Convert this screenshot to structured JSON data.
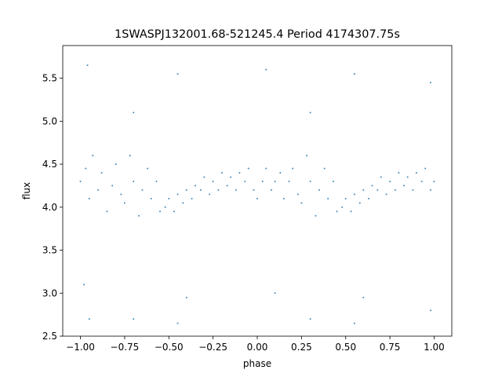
{
  "chart_data": {
    "type": "scatter",
    "title": "1SWASPJ132001.68-521245.4 Period 4174307.75s",
    "xlabel": "phase",
    "ylabel": "flux",
    "xlim": [
      -1.1,
      1.1
    ],
    "ylim": [
      2.5,
      5.88
    ],
    "xticks": [
      {
        "value": -1.0,
        "label": "−1.00"
      },
      {
        "value": -0.75,
        "label": "−0.75"
      },
      {
        "value": -0.5,
        "label": "−0.50"
      },
      {
        "value": -0.25,
        "label": "−0.25"
      },
      {
        "value": 0.0,
        "label": "0.00"
      },
      {
        "value": 0.25,
        "label": "0.25"
      },
      {
        "value": 0.5,
        "label": "0.50"
      },
      {
        "value": 0.75,
        "label": "0.75"
      },
      {
        "value": 1.0,
        "label": "1.00"
      }
    ],
    "yticks": [
      {
        "value": 2.5,
        "label": "2.5"
      },
      {
        "value": 3.0,
        "label": "3.0"
      },
      {
        "value": 3.5,
        "label": "3.5"
      },
      {
        "value": 4.0,
        "label": "4.0"
      },
      {
        "value": 4.5,
        "label": "4.5"
      },
      {
        "value": 5.0,
        "label": "5.0"
      },
      {
        "value": 5.5,
        "label": "5.5"
      }
    ],
    "grid": false,
    "marker_color": "#1f77b4",
    "series": [
      {
        "points": [
          [
            -1.0,
            4.3
          ],
          [
            -0.97,
            4.45
          ],
          [
            -0.95,
            4.1
          ],
          [
            -0.93,
            4.6
          ],
          [
            -0.9,
            4.2
          ],
          [
            -0.88,
            4.4
          ],
          [
            -0.85,
            3.95
          ],
          [
            -0.82,
            4.25
          ],
          [
            -0.8,
            4.5
          ],
          [
            -0.77,
            4.15
          ],
          [
            -0.75,
            4.05
          ],
          [
            -0.72,
            4.6
          ],
          [
            -0.7,
            4.3
          ],
          [
            -0.67,
            3.9
          ],
          [
            -0.65,
            4.2
          ],
          [
            -0.62,
            4.45
          ],
          [
            -0.6,
            4.1
          ],
          [
            -0.57,
            4.3
          ],
          [
            -0.55,
            3.95
          ],
          [
            -0.52,
            4.0
          ],
          [
            -0.5,
            4.1
          ],
          [
            -0.47,
            3.95
          ],
          [
            -0.45,
            4.15
          ],
          [
            -0.42,
            4.05
          ],
          [
            -0.4,
            4.2
          ],
          [
            -0.37,
            4.1
          ],
          [
            -0.35,
            4.25
          ],
          [
            -0.32,
            4.2
          ],
          [
            -0.3,
            4.35
          ],
          [
            -0.27,
            4.15
          ],
          [
            -0.25,
            4.3
          ],
          [
            -0.22,
            4.2
          ],
          [
            -0.2,
            4.4
          ],
          [
            -0.17,
            4.25
          ],
          [
            -0.15,
            4.35
          ],
          [
            -0.12,
            4.2
          ],
          [
            -0.1,
            4.4
          ],
          [
            -0.07,
            4.3
          ],
          [
            -0.05,
            4.45
          ],
          [
            -0.02,
            4.2
          ],
          [
            0.0,
            4.1
          ],
          [
            0.03,
            4.3
          ],
          [
            0.05,
            4.45
          ],
          [
            0.08,
            4.2
          ],
          [
            0.1,
            4.3
          ],
          [
            0.13,
            4.4
          ],
          [
            0.15,
            4.1
          ],
          [
            0.18,
            4.3
          ],
          [
            0.2,
            4.45
          ],
          [
            0.23,
            4.15
          ],
          [
            0.25,
            4.05
          ],
          [
            0.28,
            4.6
          ],
          [
            0.3,
            4.3
          ],
          [
            0.33,
            3.9
          ],
          [
            0.35,
            4.2
          ],
          [
            0.38,
            4.45
          ],
          [
            0.4,
            4.1
          ],
          [
            0.43,
            4.3
          ],
          [
            0.45,
            3.95
          ],
          [
            0.48,
            4.0
          ],
          [
            0.5,
            4.1
          ],
          [
            0.53,
            3.95
          ],
          [
            0.55,
            4.15
          ],
          [
            0.58,
            4.05
          ],
          [
            0.6,
            4.2
          ],
          [
            0.63,
            4.1
          ],
          [
            0.65,
            4.25
          ],
          [
            0.68,
            4.2
          ],
          [
            0.7,
            4.35
          ],
          [
            0.73,
            4.15
          ],
          [
            0.75,
            4.3
          ],
          [
            0.78,
            4.2
          ],
          [
            0.8,
            4.4
          ],
          [
            0.83,
            4.25
          ],
          [
            0.85,
            4.35
          ],
          [
            0.88,
            4.2
          ],
          [
            0.9,
            4.4
          ],
          [
            0.93,
            4.3
          ],
          [
            0.95,
            4.45
          ],
          [
            0.98,
            4.2
          ],
          [
            1.0,
            4.3
          ],
          [
            -0.96,
            5.65
          ],
          [
            -0.7,
            5.1
          ],
          [
            -0.45,
            5.55
          ],
          [
            0.05,
            5.6
          ],
          [
            0.3,
            5.1
          ],
          [
            0.55,
            5.55
          ],
          [
            0.98,
            5.45
          ],
          [
            -0.98,
            3.1
          ],
          [
            -0.4,
            2.95
          ],
          [
            0.1,
            3.0
          ],
          [
            0.6,
            2.95
          ],
          [
            0.98,
            2.8
          ],
          [
            -0.95,
            2.7
          ],
          [
            -0.7,
            2.7
          ],
          [
            -0.45,
            2.65
          ],
          [
            0.55,
            2.65
          ],
          [
            0.3,
            2.7
          ]
        ]
      }
    ]
  }
}
